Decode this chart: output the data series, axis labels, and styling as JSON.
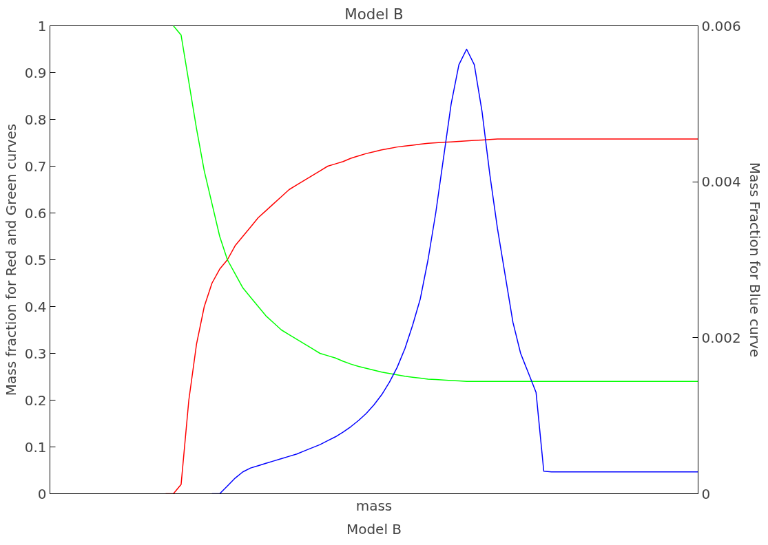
{
  "chart_data": {
    "type": "line",
    "title": "Model B",
    "xlabel": "mass",
    "ylabel": "Mass fraction for Red and Green curves",
    "y2label": "Mass Fraction for Blue curve",
    "annotations": [
      "Model B"
    ],
    "categories": [
      null,
      null,
      null,
      null,
      null,
      null,
      null,
      null,
      null,
      null,
      null,
      null,
      null,
      null,
      null,
      null,
      null,
      null,
      null,
      null,
      null,
      null,
      null,
      null,
      null,
      null,
      null,
      null,
      null,
      null,
      null,
      null,
      null,
      null,
      null,
      null,
      null,
      null,
      null,
      null,
      null,
      null,
      null,
      null,
      null,
      null,
      null,
      null,
      null,
      null,
      null,
      null,
      null,
      null,
      null,
      null,
      null,
      null,
      null,
      null,
      null,
      null,
      null,
      null,
      null,
      null,
      null,
      null,
      null,
      null,
      null,
      null,
      null,
      null,
      null,
      null,
      null,
      null,
      null,
      null,
      null,
      null,
      null,
      null,
      null
    ],
    "series": [
      {
        "color": "#ff0000",
        "values": [
          null,
          null,
          null,
          null,
          null,
          null,
          null,
          null,
          null,
          null,
          null,
          null,
          null,
          null,
          null,
          0,
          0,
          0.02,
          0.2,
          0.32,
          0.4,
          0.45,
          0.48,
          0.5,
          0.53,
          0.55,
          0.57,
          0.59,
          0.605,
          0.62,
          0.635,
          0.65,
          0.66,
          0.67,
          0.68,
          0.69,
          0.7,
          0.705,
          0.71,
          0.717,
          0.722,
          0.727,
          0.731,
          0.735,
          0.738,
          0.741,
          0.743,
          0.745,
          0.747,
          0.749,
          0.75,
          0.751,
          0.752,
          0.753,
          0.754,
          0.755,
          0.756,
          0.757,
          0.758,
          0.758,
          0.758,
          0.758,
          0.758,
          0.758,
          0.758,
          0.758,
          0.758,
          0.758,
          0.758,
          0.758,
          0.758,
          0.758,
          0.758,
          0.758,
          0.758,
          0.758,
          0.758,
          0.758,
          0.758,
          0.758,
          0.758,
          0.758,
          0.758,
          0.758,
          0.758
        ]
      },
      {
        "color": "#00ff00",
        "values": [
          null,
          null,
          null,
          null,
          null,
          null,
          null,
          null,
          null,
          null,
          null,
          null,
          null,
          null,
          null,
          null,
          1,
          0.98,
          0.88,
          0.78,
          0.69,
          0.62,
          0.55,
          0.5,
          0.47,
          0.44,
          0.42,
          0.4,
          0.38,
          0.365,
          0.35,
          0.34,
          0.33,
          0.32,
          0.31,
          0.3,
          0.295,
          0.29,
          0.283,
          0.277,
          0.272,
          0.268,
          0.264,
          0.26,
          0.257,
          0.254,
          0.251,
          0.249,
          0.247,
          0.245,
          0.244,
          0.243,
          0.242,
          0.241,
          0.24,
          0.24,
          0.24,
          0.24,
          0.24,
          0.24,
          0.24,
          0.24,
          0.24,
          0.24,
          0.24,
          0.24,
          0.24,
          0.24,
          0.24,
          0.24,
          0.24,
          0.24,
          0.24,
          0.24,
          0.24,
          0.24,
          0.24,
          0.24,
          0.24,
          0.24,
          0.24,
          0.24,
          0.24,
          0.24,
          0.24
        ]
      },
      {
        "color": "#0000ff",
        "axis": "y2",
        "values": [
          null,
          null,
          null,
          null,
          null,
          null,
          null,
          null,
          null,
          null,
          null,
          null,
          null,
          null,
          null,
          null,
          null,
          null,
          null,
          null,
          null,
          0,
          0,
          0.0001,
          0.0002,
          0.00028,
          0.00033,
          0.00036,
          0.00039,
          0.00042,
          0.00045,
          0.00048,
          0.00051,
          0.00055,
          0.00059,
          0.00063,
          0.00068,
          0.00073,
          0.00079,
          0.00086,
          0.00094,
          0.00103,
          0.00114,
          0.00127,
          0.00143,
          0.00162,
          0.00186,
          0.00216,
          0.0025,
          0.003,
          0.0036,
          0.0043,
          0.005,
          0.0055,
          0.0057,
          0.0055,
          0.0049,
          0.0041,
          0.0034,
          0.0028,
          0.0022,
          0.0018,
          0.00155,
          0.0013,
          0.00029,
          0.00028,
          0.00028,
          0.00028,
          0.00028,
          0.00028,
          0.00028,
          0.00028,
          0.00028,
          0.00028,
          0.00028,
          0.00028,
          0.00028,
          0.00028,
          0.00028,
          0.00028,
          0.00028,
          0.00028,
          0.00028,
          0.00028,
          0.00028
        ]
      }
    ],
    "ylim": [
      0,
      1
    ],
    "yticks": [
      0,
      0.1,
      0.2,
      0.3,
      0.4,
      0.5,
      0.6,
      0.7,
      0.8,
      0.9,
      1
    ],
    "y2lim": [
      0,
      0.006
    ],
    "y2ticks": [
      0,
      0.002,
      0.004,
      0.006
    ],
    "tick_labels": "y",
    "grid": false,
    "line_style": "solid"
  }
}
